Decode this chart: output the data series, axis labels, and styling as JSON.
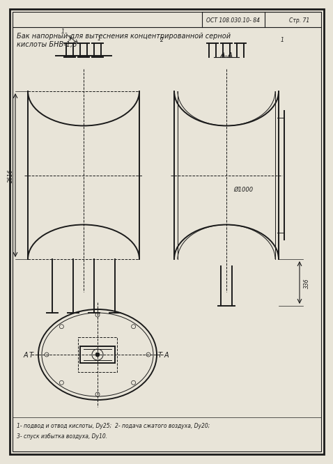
{
  "bg_color": "#f0ede5",
  "line_color": "#1a1a1a",
  "page_color": "#e8e4d8",
  "title_line1": "Бак напорный для вытеснения концентрированной серной",
  "title_line2": "кислоты БНВ-1,6",
  "header_std": "ОСТ 108.030.10- 84",
  "header_page": "Стр. 71",
  "section_label": "А-А",
  "dim_height": "2616",
  "dim_diam": "Ø1000",
  "dim_leg": "336",
  "label_A1": "А",
  "label_A2": "А",
  "footnote1": "1- подвод и отвод кислоты, Dy25;  2- подача сжатого воздуха, Dy20;",
  "footnote2": "3- спуск избытка воздуха, Dy10."
}
